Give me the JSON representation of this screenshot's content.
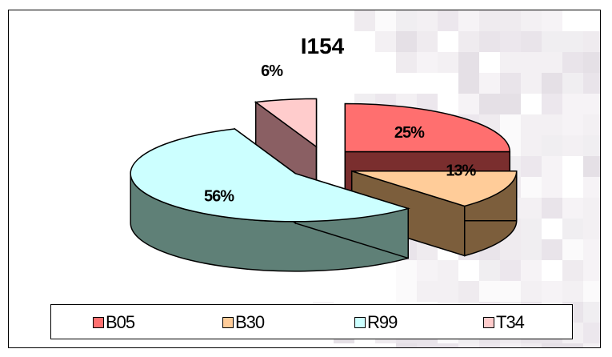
{
  "chart_data": {
    "type": "pie",
    "title": "I154",
    "categories": [
      "B05",
      "B30",
      "R99",
      "T34"
    ],
    "values": [
      25,
      13,
      56,
      6
    ],
    "labels": [
      "25%",
      "13%",
      "56%",
      "6%"
    ],
    "colors": {
      "B05": "#ff6f6f",
      "B30": "#ffcc99",
      "R99": "#ccffff",
      "T34": "#ffcccc"
    },
    "side_colors": {
      "B05": "#7a2e2e",
      "B30": "#7c5e3c",
      "R99": "#5f8077",
      "T34": "#8a5f63"
    },
    "exploded": true,
    "three_d": true,
    "legend_position": "bottom"
  }
}
